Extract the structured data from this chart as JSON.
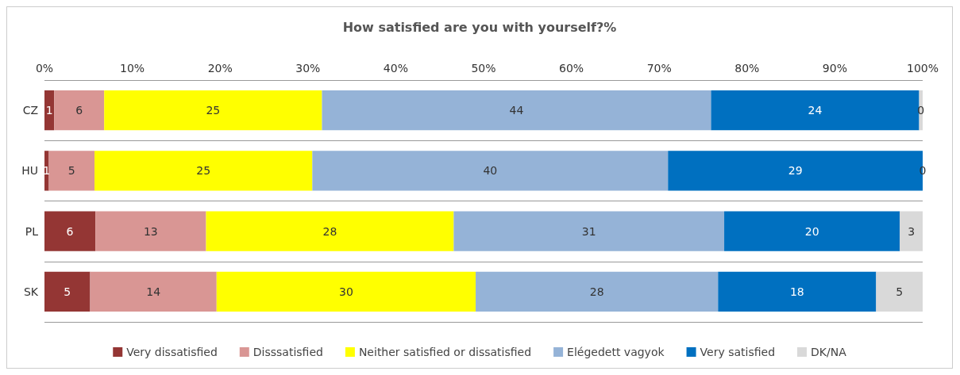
{
  "chart_data": {
    "type": "bar",
    "orientation": "horizontal",
    "stacked": true,
    "title": "How satisfied are you with yourself?%",
    "categories": [
      "CZ",
      "HU",
      "PL",
      "SK"
    ],
    "series": [
      {
        "name": "Very dissatisfied",
        "color": "#943634",
        "values": [
          1.1,
          0.5,
          5.8,
          5.2
        ],
        "value_labels": [
          "1",
          "1",
          "6",
          "5"
        ]
      },
      {
        "name": "Disssatisfied",
        "color": "#d99694",
        "values": [
          5.7,
          5.2,
          12.6,
          14.4
        ],
        "value_labels": [
          "6",
          "5",
          "13",
          "14"
        ]
      },
      {
        "name": "Neither satisfied or dissatisfied",
        "color": "#ffff00",
        "values": [
          24.8,
          24.8,
          28.2,
          29.5
        ],
        "value_labels": [
          "25",
          "25",
          "28",
          "30"
        ]
      },
      {
        "name": "Elégedett vagyok",
        "color": "#95b3d7",
        "values": [
          44.3,
          40.5,
          30.8,
          27.6
        ],
        "value_labels": [
          "44",
          "40",
          "31",
          "28"
        ]
      },
      {
        "name": "Very satisfied",
        "color": "#0070c0",
        "values": [
          23.7,
          29.0,
          20.0,
          18.0
        ],
        "value_labels": [
          "24",
          "29",
          "20",
          "18"
        ]
      },
      {
        "name": "DK/NA",
        "color": "#d9d9d9",
        "values": [
          0.4,
          0,
          2.6,
          5.3
        ],
        "value_labels": [
          "0",
          "0",
          "3",
          "5"
        ]
      }
    ],
    "xlim": [
      0,
      100
    ],
    "xticks": [
      {
        "value": 0,
        "label": "0%"
      },
      {
        "value": 10,
        "label": "10%"
      },
      {
        "value": 20,
        "label": "20%"
      },
      {
        "value": 30,
        "label": "30%"
      },
      {
        "value": 40,
        "label": "40%"
      },
      {
        "value": 50,
        "label": "50%"
      },
      {
        "value": 60,
        "label": "60%"
      },
      {
        "value": 70,
        "label": "70%"
      },
      {
        "value": 80,
        "label": "80%"
      },
      {
        "value": 90,
        "label": "90%"
      },
      {
        "value": 100,
        "label": "100%"
      }
    ],
    "grid": "y",
    "legend": "bottom"
  }
}
